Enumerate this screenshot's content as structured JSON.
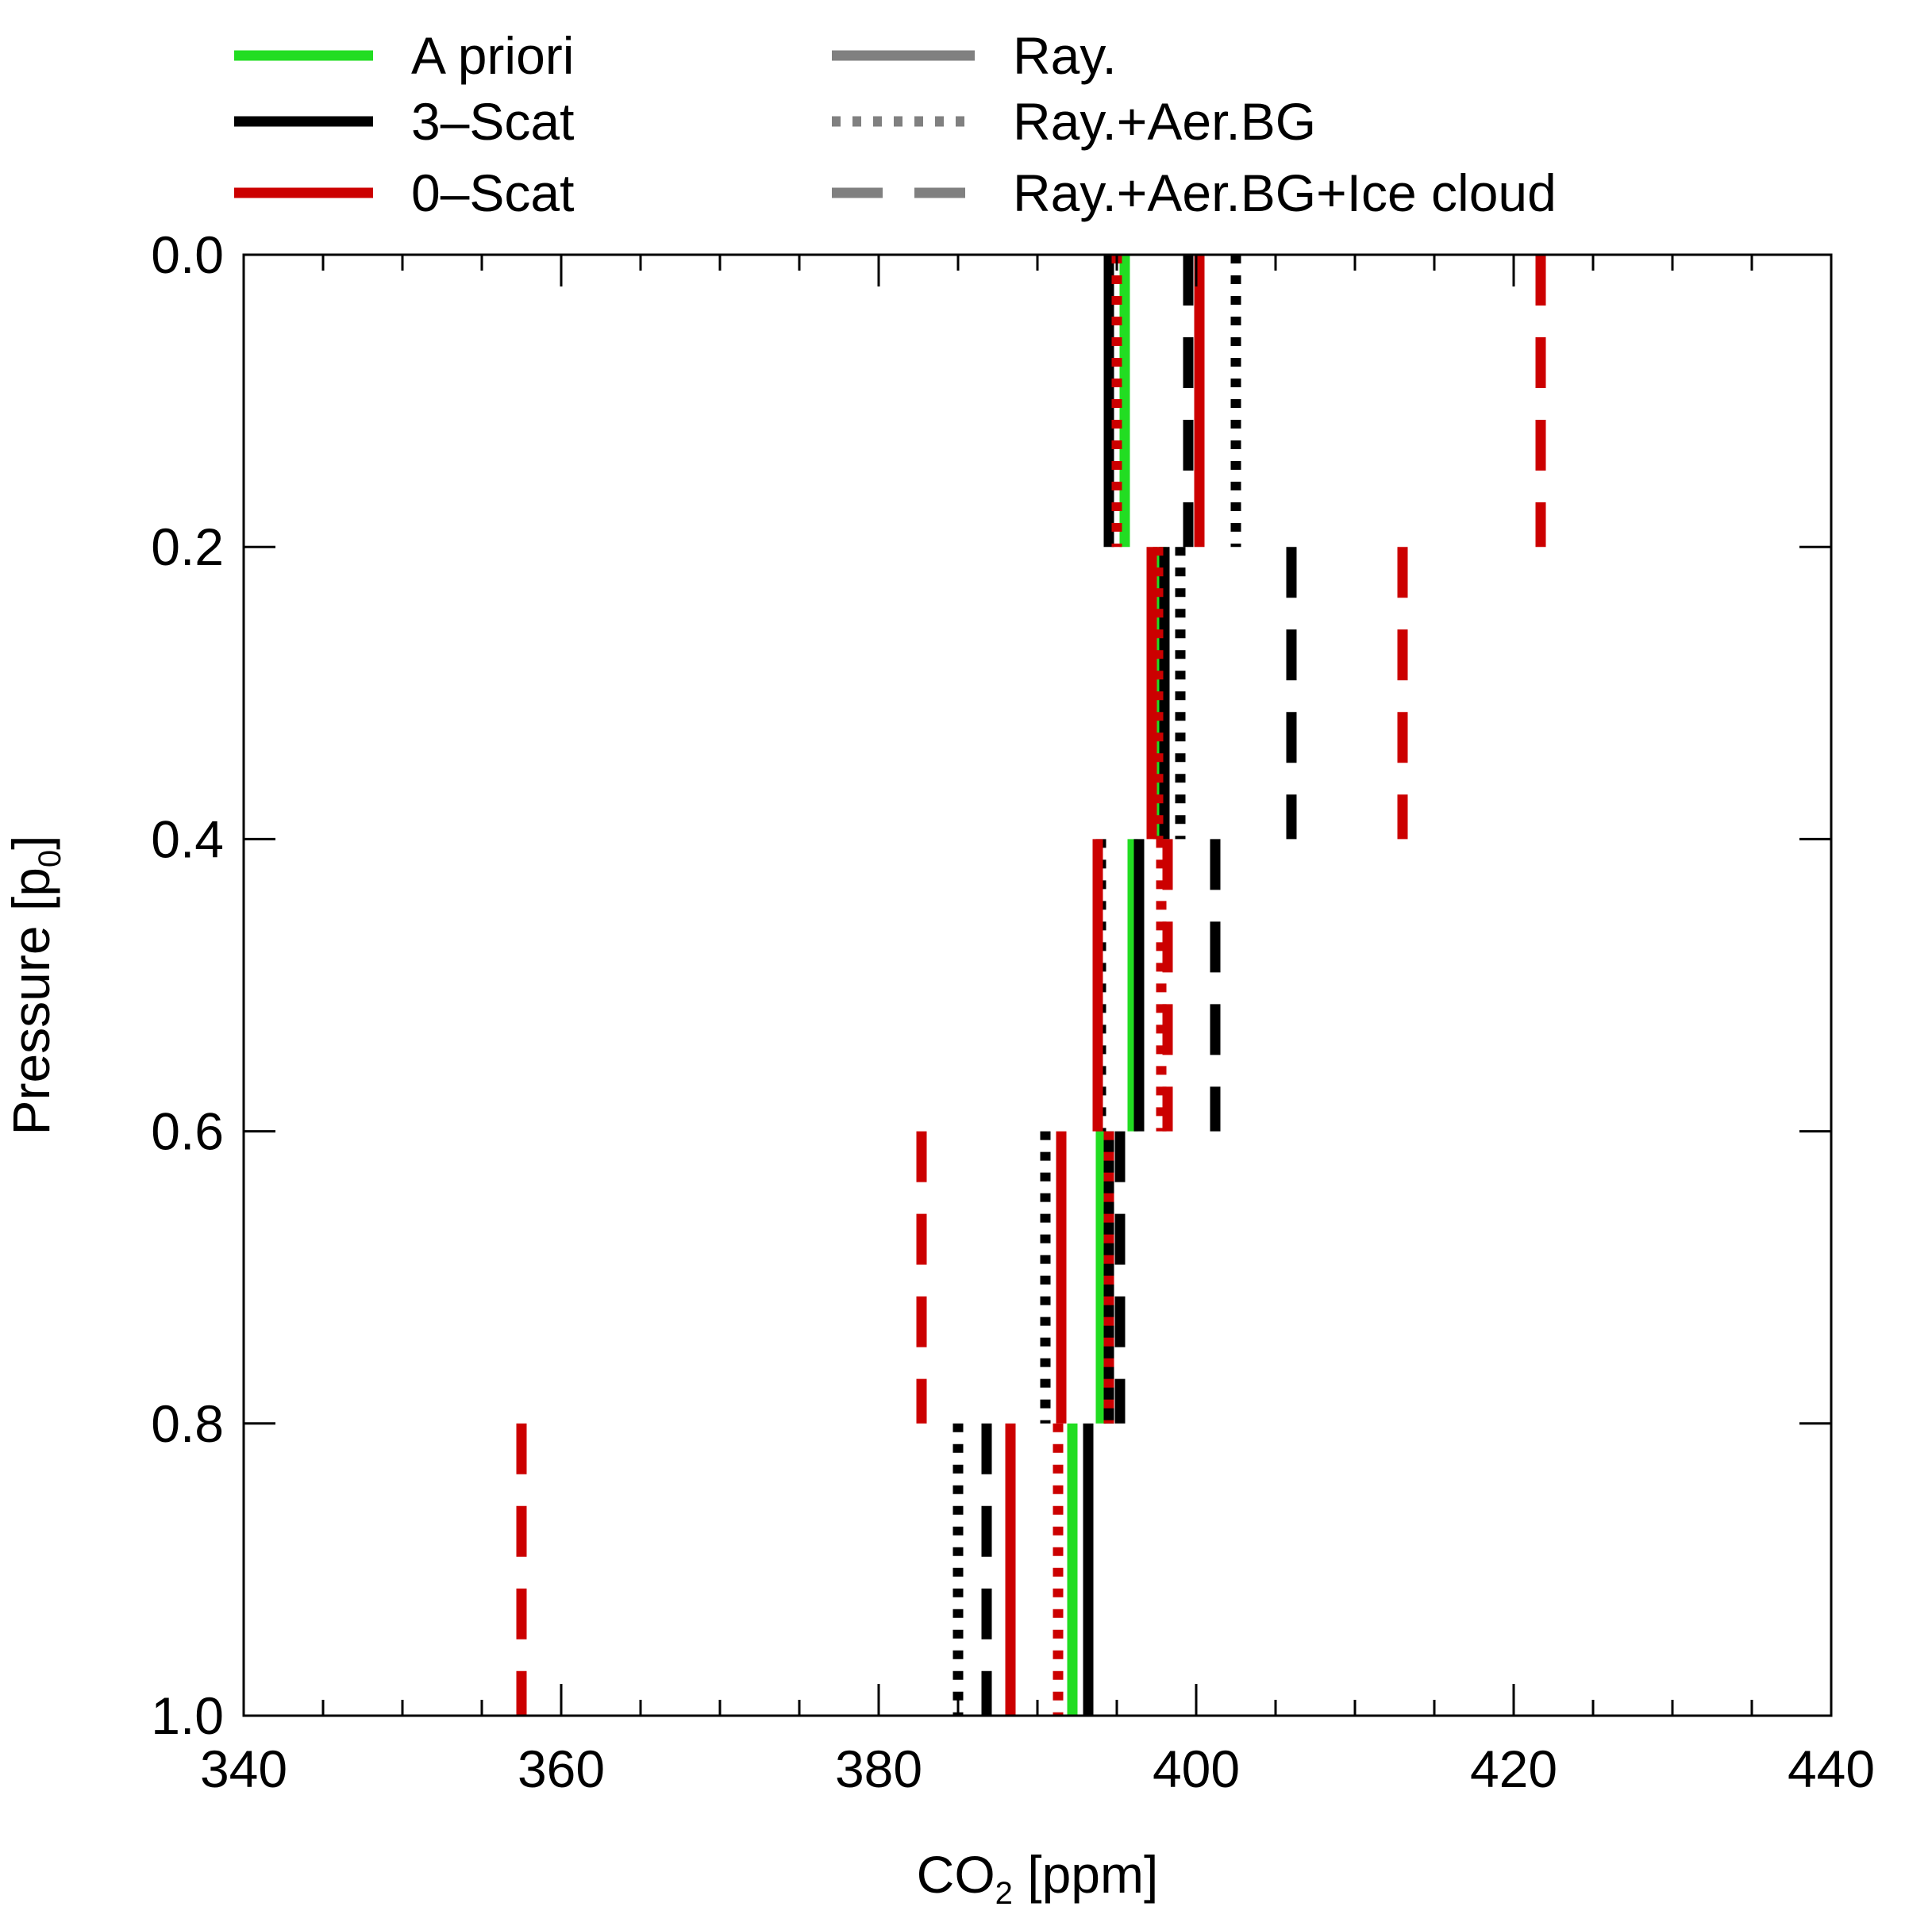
{
  "chart_data": {
    "type": "line",
    "xlabel": {
      "main": "CO",
      "sub": "2",
      "rest": " [ppm]"
    },
    "ylabel": {
      "main": "Pressure [p",
      "sub": "0",
      "rest": "]"
    },
    "xlim": [
      340,
      440
    ],
    "ylim": [
      1.0,
      0.0
    ],
    "y_reversed": true,
    "xticks": [
      "340",
      "360",
      "380",
      "400",
      "420",
      "440"
    ],
    "yticks": [
      "0.0",
      "0.2",
      "0.4",
      "0.6",
      "0.8",
      "1.0"
    ],
    "xtick_values": [
      340,
      360,
      380,
      400,
      420,
      440
    ],
    "ytick_values": [
      0.0,
      0.2,
      0.4,
      0.6,
      0.8,
      1.0
    ],
    "x_minor_step": 5,
    "grid": false,
    "legend_placement": "top, above plot, two columns",
    "legend": {
      "colors": [
        {
          "label": "A priori",
          "color": "#22dd22"
        },
        {
          "label": "3–Scat",
          "color": "#000000"
        },
        {
          "label": "0–Scat",
          "color": "#cc0000"
        }
      ],
      "styles": [
        {
          "label": "Ray.",
          "dash": "solid",
          "color": "#808080"
        },
        {
          "label": "Ray.+Aer.BG",
          "dash": "dotted",
          "color": "#808080"
        },
        {
          "label": "Ray.+Aer.BG+Ice cloud",
          "dash": "dashed",
          "color": "#808080"
        }
      ]
    },
    "layers": [
      [
        0.0,
        0.2
      ],
      [
        0.2,
        0.4
      ],
      [
        0.4,
        0.6
      ],
      [
        0.6,
        0.8
      ],
      [
        0.8,
        1.0
      ]
    ],
    "series": [
      {
        "name": "A priori",
        "color": "#22dd22",
        "dash": "solid",
        "values": [
          395.5,
          397.8,
          396.0,
          394.0,
          392.2
        ]
      },
      {
        "name": "3–Scat, Ray.",
        "color": "#000000",
        "dash": "solid",
        "values": [
          394.5,
          398.0,
          396.4,
          394.5,
          393.2
        ]
      },
      {
        "name": "3–Scat, Ray.+Aer.BG",
        "color": "#000000",
        "dash": "dotted",
        "values": [
          402.5,
          399.0,
          394.0,
          390.5,
          385.0
        ]
      },
      {
        "name": "3–Scat, Ray.+Aer.BG+Ice cloud",
        "color": "#000000",
        "dash": "dashed",
        "values": [
          399.5,
          406.0,
          401.2,
          395.2,
          386.8
        ]
      },
      {
        "name": "0–Scat, Ray.",
        "color": "#cc0000",
        "dash": "solid",
        "values": [
          400.2,
          397.2,
          393.8,
          391.5,
          388.3
        ]
      },
      {
        "name": "0–Scat, Ray.+Aer.BG",
        "color": "#cc0000",
        "dash": "dotted",
        "values": [
          395.0,
          397.6,
          397.8,
          394.5,
          391.3
        ]
      },
      {
        "name": "0–Scat, Ray.+Aer.BG+Ice cloud",
        "color": "#cc0000",
        "dash": "dashed",
        "values": [
          421.7,
          413.0,
          398.2,
          382.7,
          357.5
        ]
      }
    ]
  }
}
